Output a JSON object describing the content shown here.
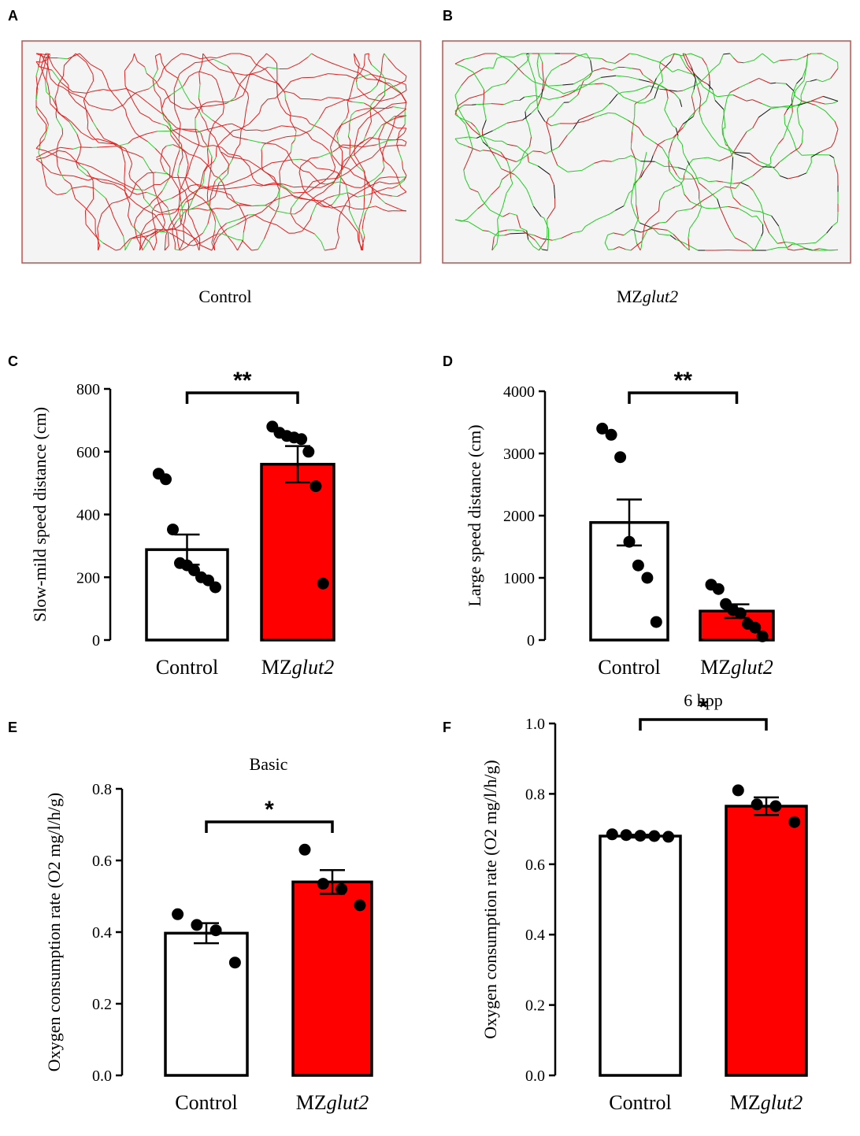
{
  "figure": {
    "panels": {
      "A": {
        "letter": "A",
        "caption": "Control"
      },
      "B": {
        "letter": "B",
        "caption_prefix": "MZ",
        "caption_italic": "glut2"
      }
    }
  },
  "chart_data": [
    {
      "panel": "C",
      "type": "bar",
      "title": "",
      "ylabel": "Slow-mild speed distance (cm)",
      "ylim": [
        0,
        800
      ],
      "yticks": [
        0,
        200,
        400,
        600,
        800
      ],
      "categories": [
        "Control",
        "MZglut2"
      ],
      "category_prefix": [
        "Control",
        "MZ"
      ],
      "category_italic": [
        "",
        "glut2"
      ],
      "values": [
        288,
        560
      ],
      "sem": [
        48,
        58
      ],
      "fills": [
        "#ffffff",
        "#ff0000"
      ],
      "points": [
        [
          530,
          512,
          352,
          245,
          238,
          222,
          200,
          190,
          168
        ],
        [
          680,
          660,
          650,
          645,
          640,
          600,
          490,
          180
        ]
      ],
      "significance": "**"
    },
    {
      "panel": "D",
      "type": "bar",
      "title": "",
      "ylabel": "Large speed distance (cm)",
      "ylim": [
        0,
        4000
      ],
      "yticks": [
        0,
        1000,
        2000,
        3000,
        4000
      ],
      "categories": [
        "Control",
        "MZglut2"
      ],
      "category_prefix": [
        "Control",
        "MZ"
      ],
      "category_italic": [
        "",
        "glut2"
      ],
      "values": [
        1890,
        465
      ],
      "sem": [
        370,
        110
      ],
      "fills": [
        "#ffffff",
        "#ff0000"
      ],
      "points": [
        [
          3400,
          3300,
          2940,
          1580,
          1200,
          1000,
          290
        ],
        [
          890,
          820,
          580,
          480,
          430,
          260,
          200,
          60
        ]
      ],
      "significance": "**"
    },
    {
      "panel": "E",
      "type": "bar",
      "title": "Basic",
      "ylabel": "Oxygen consumption rate (O2 mg/l/h/g)",
      "ylim": [
        0,
        0.8
      ],
      "yticks": [
        "0.0",
        "0.2",
        "0.4",
        "0.6",
        "0.8"
      ],
      "categories": [
        "Control",
        "MZglut2"
      ],
      "category_prefix": [
        "Control",
        "MZ"
      ],
      "category_italic": [
        "",
        "glut2"
      ],
      "values": [
        0.397,
        0.54
      ],
      "sem": [
        0.028,
        0.033
      ],
      "fills": [
        "#ffffff",
        "#ff0000"
      ],
      "points": [
        [
          0.45,
          0.42,
          0.405,
          0.315
        ],
        [
          0.63,
          0.535,
          0.52,
          0.475
        ]
      ],
      "significance": "*"
    },
    {
      "panel": "F",
      "type": "bar",
      "title": "6 hpp",
      "ylabel": "Oxygen consumption rate (O2 mg/l/h/g)",
      "ylim": [
        0,
        1.0
      ],
      "yticks": [
        "0.0",
        "0.2",
        "0.4",
        "0.6",
        "0.8",
        "1.0"
      ],
      "categories": [
        "Control",
        "MZglut2"
      ],
      "category_prefix": [
        "Control",
        "MZ"
      ],
      "category_italic": [
        "",
        "glut2"
      ],
      "values": [
        0.68,
        0.765
      ],
      "sem": [
        0.004,
        0.025
      ],
      "fills": [
        "#ffffff",
        "#ff0000"
      ],
      "points": [
        [
          0.685,
          0.683,
          0.681,
          0.68,
          0.678
        ],
        [
          0.81,
          0.77,
          0.765,
          0.72
        ]
      ],
      "significance": "*"
    }
  ]
}
